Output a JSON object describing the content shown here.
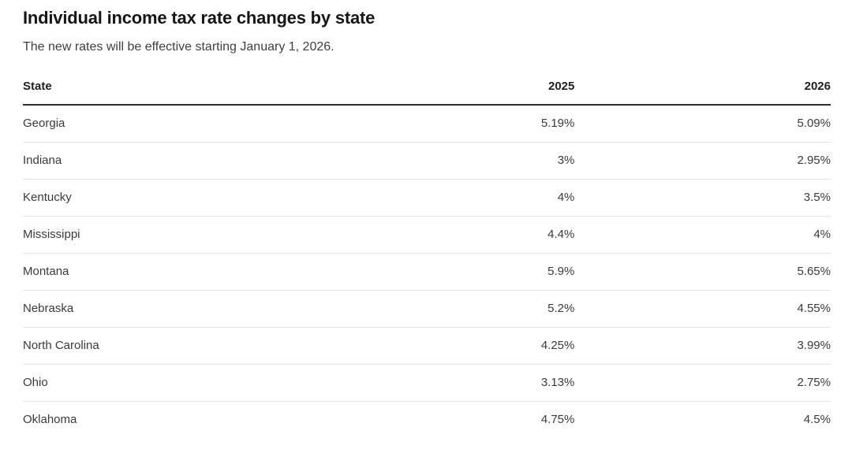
{
  "header": {
    "title": "Individual income tax rate changes by state",
    "subtitle": "The new rates will be effective starting January 1, 2026."
  },
  "table": {
    "columns": {
      "state": "State",
      "y2025": "2025",
      "y2026": "2026"
    },
    "rows": [
      {
        "state": "Georgia",
        "y2025": "5.19%",
        "y2026": "5.09%"
      },
      {
        "state": "Indiana",
        "y2025": "3%",
        "y2026": "2.95%"
      },
      {
        "state": "Kentucky",
        "y2025": "4%",
        "y2026": "3.5%"
      },
      {
        "state": "Mississippi",
        "y2025": "4.4%",
        "y2026": "4%"
      },
      {
        "state": "Montana",
        "y2025": "5.9%",
        "y2026": "5.65%"
      },
      {
        "state": "Nebraska",
        "y2025": "5.2%",
        "y2026": "4.55%"
      },
      {
        "state": "North Carolina",
        "y2025": "4.25%",
        "y2026": "3.99%"
      },
      {
        "state": "Ohio",
        "y2025": "3.13%",
        "y2026": "2.75%"
      },
      {
        "state": "Oklahoma",
        "y2025": "4.75%",
        "y2026": "4.5%"
      }
    ]
  },
  "chart_data": {
    "type": "table",
    "title": "Individual income tax rate changes by state",
    "subtitle": "The new rates will be effective starting January 1, 2026.",
    "columns": [
      "State",
      "2025",
      "2026"
    ],
    "rows": [
      [
        "Georgia",
        "5.19%",
        "5.09%"
      ],
      [
        "Indiana",
        "3%",
        "2.95%"
      ],
      [
        "Kentucky",
        "4%",
        "3.5%"
      ],
      [
        "Mississippi",
        "4.4%",
        "4%"
      ],
      [
        "Montana",
        "5.9%",
        "5.65%"
      ],
      [
        "Nebraska",
        "5.2%",
        "4.55%"
      ],
      [
        "North Carolina",
        "4.25%",
        "3.99%"
      ],
      [
        "Ohio",
        "3.13%",
        "2.75%"
      ],
      [
        "Oklahoma",
        "4.75%",
        "4.5%"
      ]
    ],
    "numeric_values_percent": {
      "2025": [
        5.19,
        3,
        4,
        4.4,
        5.9,
        5.2,
        4.25,
        3.13,
        4.75
      ],
      "2026": [
        5.09,
        2.95,
        3.5,
        4,
        5.65,
        4.55,
        3.99,
        2.75,
        4.5
      ]
    },
    "layout": {
      "first_column_align": "left",
      "value_columns_align": "right",
      "header_rule": "2px dark",
      "row_rule": "1px light"
    }
  },
  "colors": {
    "background": "#ffffff",
    "title_text": "#161616",
    "body_text": "#3a3a3a",
    "header_rule": "#2e2e2e",
    "row_rule": "#e5e5e5"
  }
}
